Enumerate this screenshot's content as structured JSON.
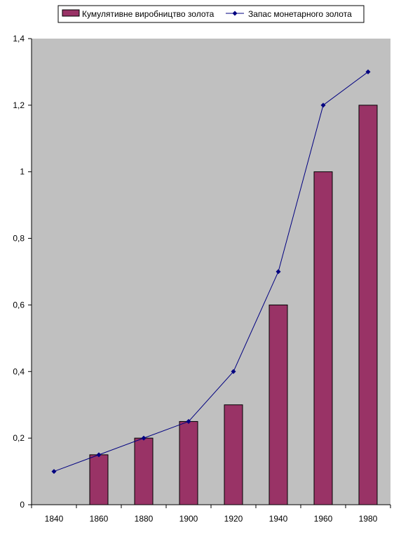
{
  "chart_data": {
    "type": "bar",
    "title": "",
    "xlabel": "",
    "ylabel": "",
    "categories": [
      "1840",
      "1860",
      "1880",
      "1900",
      "1920",
      "1940",
      "1960",
      "1980"
    ],
    "ylim": [
      0,
      1.4
    ],
    "yticks": [
      "0",
      "0,2",
      "0,4",
      "0,6",
      "0,8",
      "1",
      "1,2",
      "1,4"
    ],
    "ytick_values": [
      0,
      0.2,
      0.4,
      0.6,
      0.8,
      1.0,
      1.2,
      1.4
    ],
    "grid": false,
    "legend_position": "top",
    "plot_background": "#c0c0c0",
    "series": [
      {
        "name": "Кумулятивне виробництво золота",
        "type": "bar",
        "color": "#993366",
        "values": [
          null,
          0.15,
          0.2,
          0.25,
          0.3,
          0.6,
          1.0,
          1.2
        ]
      },
      {
        "name": "Запас монетарного золота",
        "type": "line",
        "color": "#000080",
        "marker": "diamond",
        "values": [
          0.1,
          0.15,
          0.2,
          0.25,
          0.4,
          0.7,
          1.2,
          1.3
        ]
      }
    ]
  }
}
